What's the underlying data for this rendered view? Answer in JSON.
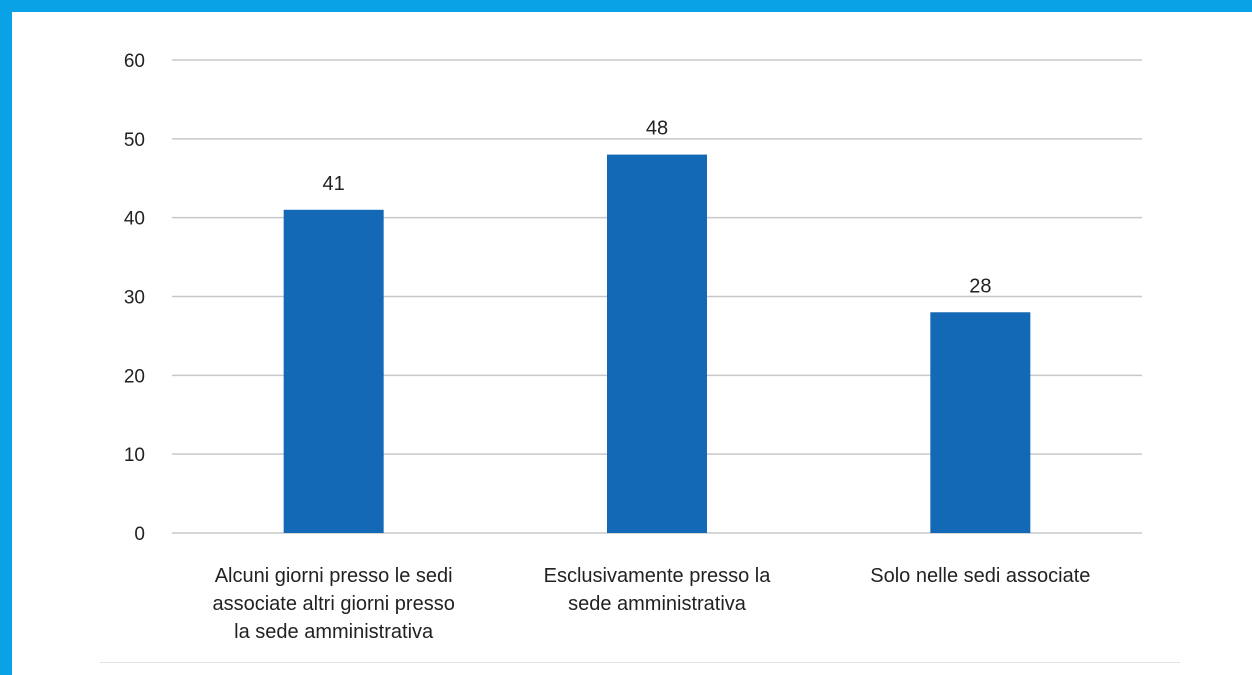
{
  "colors": {
    "frame": "#0aa2e6",
    "bar": "#1369b5",
    "grid": "#c8c8c8"
  },
  "chart_data": {
    "type": "bar",
    "title": "",
    "xlabel": "",
    "ylabel": "",
    "ylim": [
      0,
      60
    ],
    "yticks": [
      "0",
      "10",
      "20",
      "30",
      "40",
      "50",
      "60"
    ],
    "grid": true,
    "legend": "none",
    "categories": [
      "Alcuni giorni presso le sedi associate altri giorni presso la sede amministrativa",
      "Esclusivamente presso la sede amministrativa",
      "Solo nelle sedi associate"
    ],
    "category_lines": [
      [
        "Alcuni giorni presso le sedi",
        "associate altri giorni presso",
        "la sede amministrativa"
      ],
      [
        "Esclusivamente presso la",
        "sede amministrativa"
      ],
      [
        "Solo nelle sedi associate"
      ]
    ],
    "values": [
      41,
      48,
      28
    ],
    "data_labels": [
      "41",
      "48",
      "28"
    ]
  }
}
